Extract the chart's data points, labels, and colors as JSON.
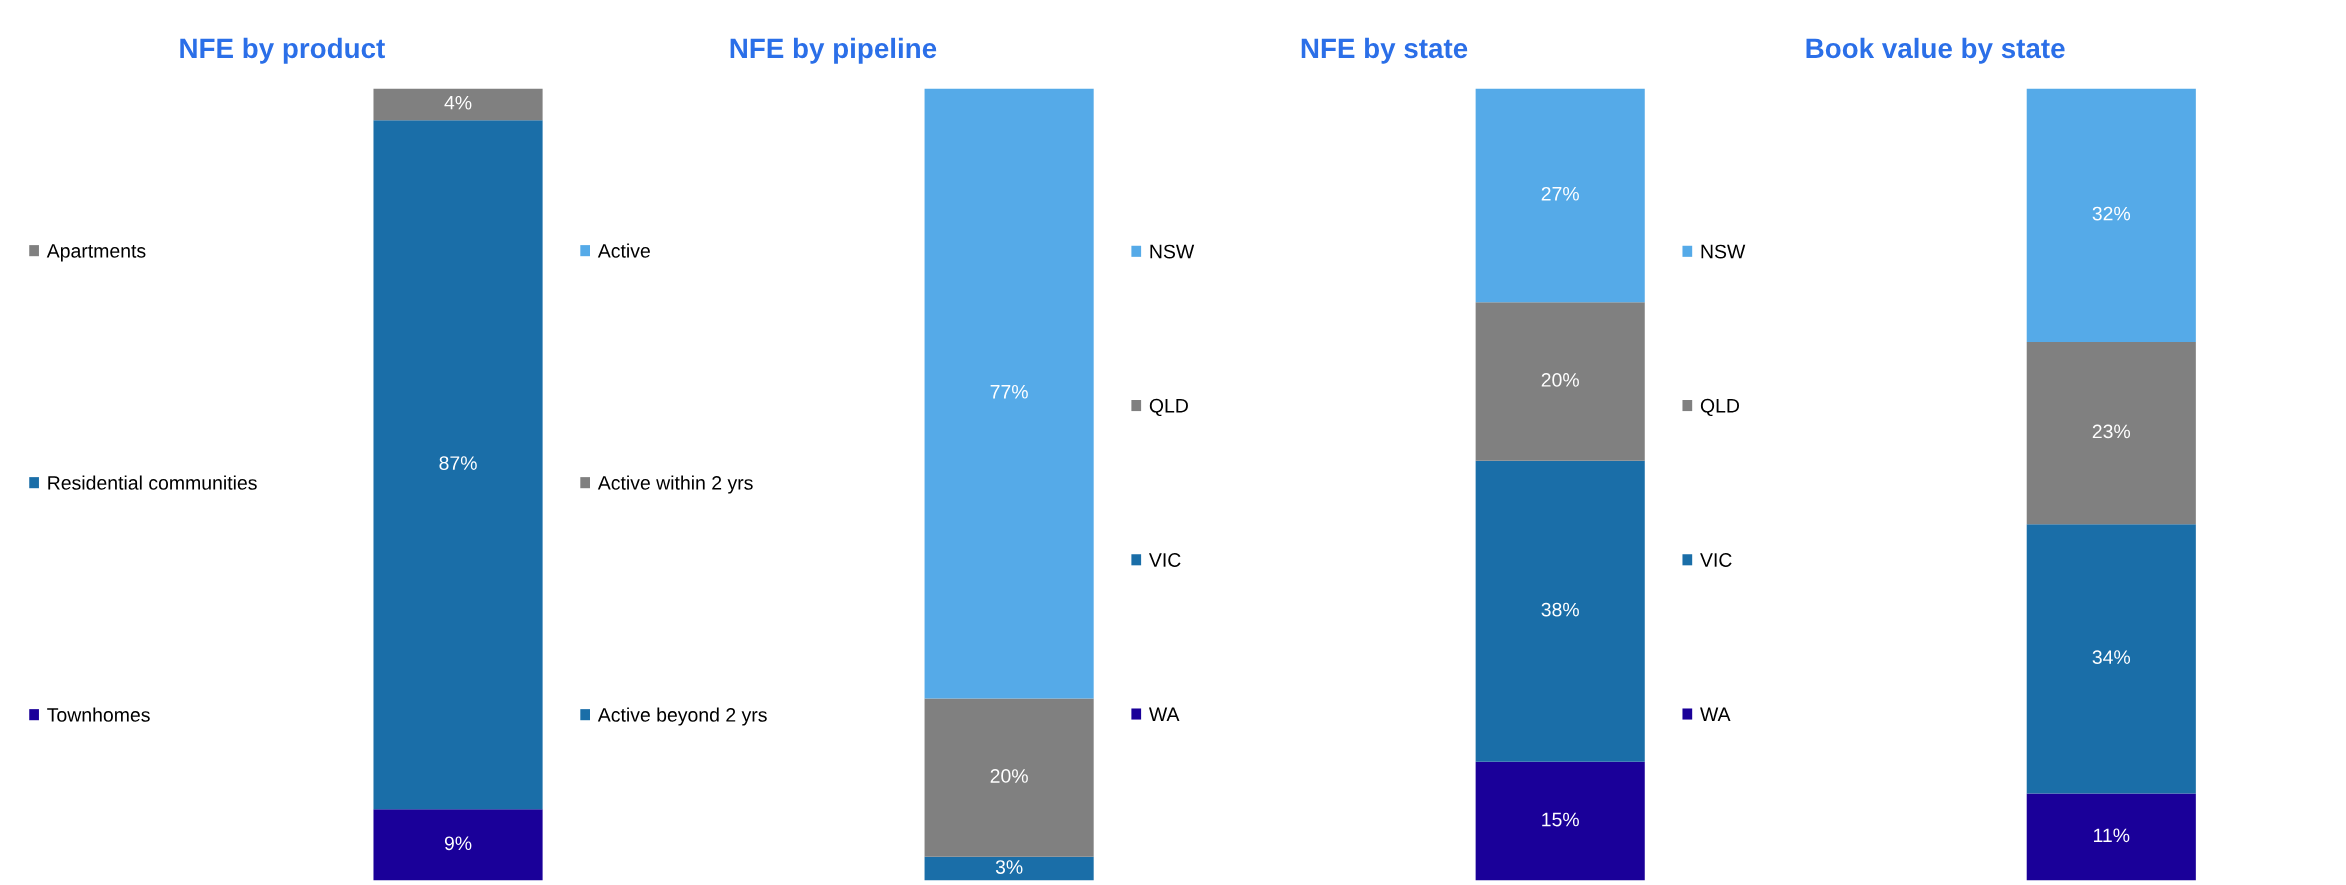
{
  "chart_data": [
    {
      "type": "bar",
      "title": "NFE by product",
      "stacked": true,
      "categories": [
        null
      ],
      "legend": "left",
      "series": [
        {
          "name": "Townhomes",
          "color": "#1a0099",
          "values": [
            9
          ],
          "value_labels": [
            "9%"
          ]
        },
        {
          "name": "Residential communities",
          "color": "#1a6ea8",
          "values": [
            87
          ],
          "value_labels": [
            "87%"
          ]
        },
        {
          "name": "Apartments",
          "color": "#808080",
          "values": [
            4
          ],
          "value_labels": [
            "4%"
          ]
        }
      ]
    },
    {
      "type": "bar",
      "title": "NFE by pipeline",
      "stacked": true,
      "categories": [
        null
      ],
      "legend": "left",
      "series": [
        {
          "name": "Active beyond 2 yrs",
          "color": "#1a6ea8",
          "values": [
            3
          ],
          "value_labels": [
            "3%"
          ]
        },
        {
          "name": "Active within 2 yrs",
          "color": "#808080",
          "values": [
            20
          ],
          "value_labels": [
            "20%"
          ]
        },
        {
          "name": "Active",
          "color": "#55aae8",
          "values": [
            77
          ],
          "value_labels": [
            "77%"
          ]
        }
      ]
    },
    {
      "type": "bar",
      "title": "NFE by state",
      "stacked": true,
      "categories": [
        null
      ],
      "legend": "left",
      "series": [
        {
          "name": "WA",
          "color": "#1a0099",
          "values": [
            15
          ],
          "value_labels": [
            "15%"
          ]
        },
        {
          "name": "VIC",
          "color": "#1a6ea8",
          "values": [
            38
          ],
          "value_labels": [
            "38%"
          ]
        },
        {
          "name": "QLD",
          "color": "#808080",
          "values": [
            20
          ],
          "value_labels": [
            "20%"
          ]
        },
        {
          "name": "NSW",
          "color": "#55aae8",
          "values": [
            27
          ],
          "value_labels": [
            "27%"
          ]
        }
      ]
    },
    {
      "type": "bar",
      "title": "Book value by state",
      "stacked": true,
      "categories": [
        null
      ],
      "legend": "left",
      "series": [
        {
          "name": "WA",
          "color": "#1a0099",
          "values": [
            11
          ],
          "value_labels": [
            "11%"
          ]
        },
        {
          "name": "VIC",
          "color": "#1a6ea8",
          "values": [
            34
          ],
          "value_labels": [
            "34%"
          ]
        },
        {
          "name": "QLD",
          "color": "#808080",
          "values": [
            23
          ],
          "value_labels": [
            "23%"
          ]
        },
        {
          "name": "NSW",
          "color": "#55aae8",
          "values": [
            32
          ],
          "value_labels": [
            "32%"
          ]
        }
      ]
    }
  ]
}
